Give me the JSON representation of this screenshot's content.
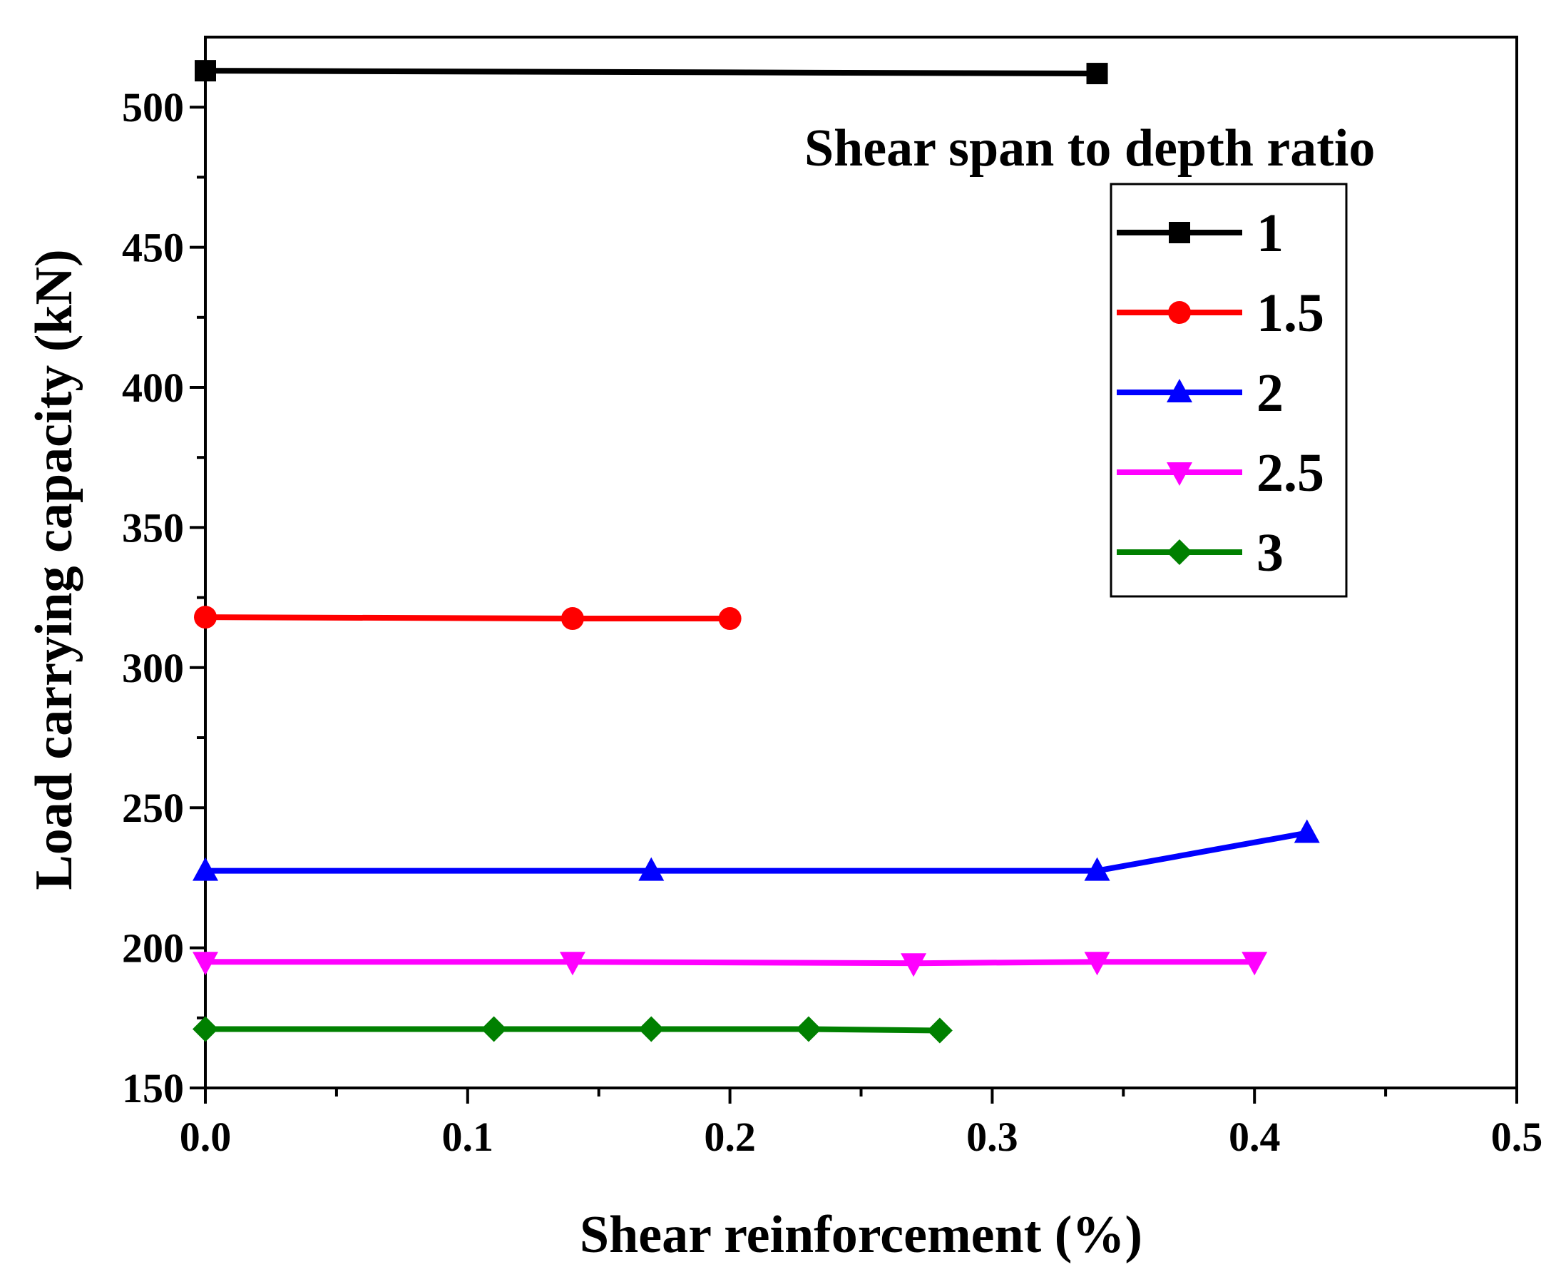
{
  "chart_data": {
    "type": "line",
    "title": "",
    "xlabel": "Shear reinforcement (%)",
    "ylabel": "Load carrying capacity (kN)",
    "xlim": [
      0.0,
      0.5
    ],
    "ylim": [
      150,
      525
    ],
    "x_ticks": [
      0.0,
      0.1,
      0.2,
      0.3,
      0.4,
      0.5
    ],
    "x_tick_labels": [
      "0.0",
      "0.1",
      "0.2",
      "0.3",
      "0.4",
      "0.5"
    ],
    "y_ticks": [
      150,
      200,
      250,
      300,
      350,
      400,
      450,
      500
    ],
    "y_tick_labels": [
      "150",
      "200",
      "250",
      "300",
      "350",
      "400",
      "450",
      "500"
    ],
    "grid": false,
    "legend": {
      "title": "Shear span to depth ratio",
      "position": "top-right"
    },
    "series": [
      {
        "name": "1",
        "color": "#000000",
        "marker": "square",
        "x": [
          0.0,
          0.34
        ],
        "y": [
          513,
          512
        ]
      },
      {
        "name": "1.5",
        "color": "#ff0000",
        "marker": "circle",
        "x": [
          0.0,
          0.14,
          0.2
        ],
        "y": [
          318,
          317.5,
          317.5
        ]
      },
      {
        "name": "2",
        "color": "#0000ff",
        "marker": "triangle-up",
        "x": [
          0.0,
          0.17,
          0.34,
          0.42
        ],
        "y": [
          227.5,
          227.5,
          227.5,
          241
        ]
      },
      {
        "name": "2.5",
        "color": "#ff00ff",
        "marker": "triangle-down",
        "x": [
          0.0,
          0.14,
          0.27,
          0.34,
          0.4
        ],
        "y": [
          195,
          195,
          194.5,
          195,
          195
        ]
      },
      {
        "name": "3",
        "color": "#008000",
        "marker": "diamond",
        "x": [
          0.0,
          0.11,
          0.17,
          0.23,
          0.28
        ],
        "y": [
          171,
          171,
          171,
          171,
          170.5
        ]
      }
    ]
  }
}
